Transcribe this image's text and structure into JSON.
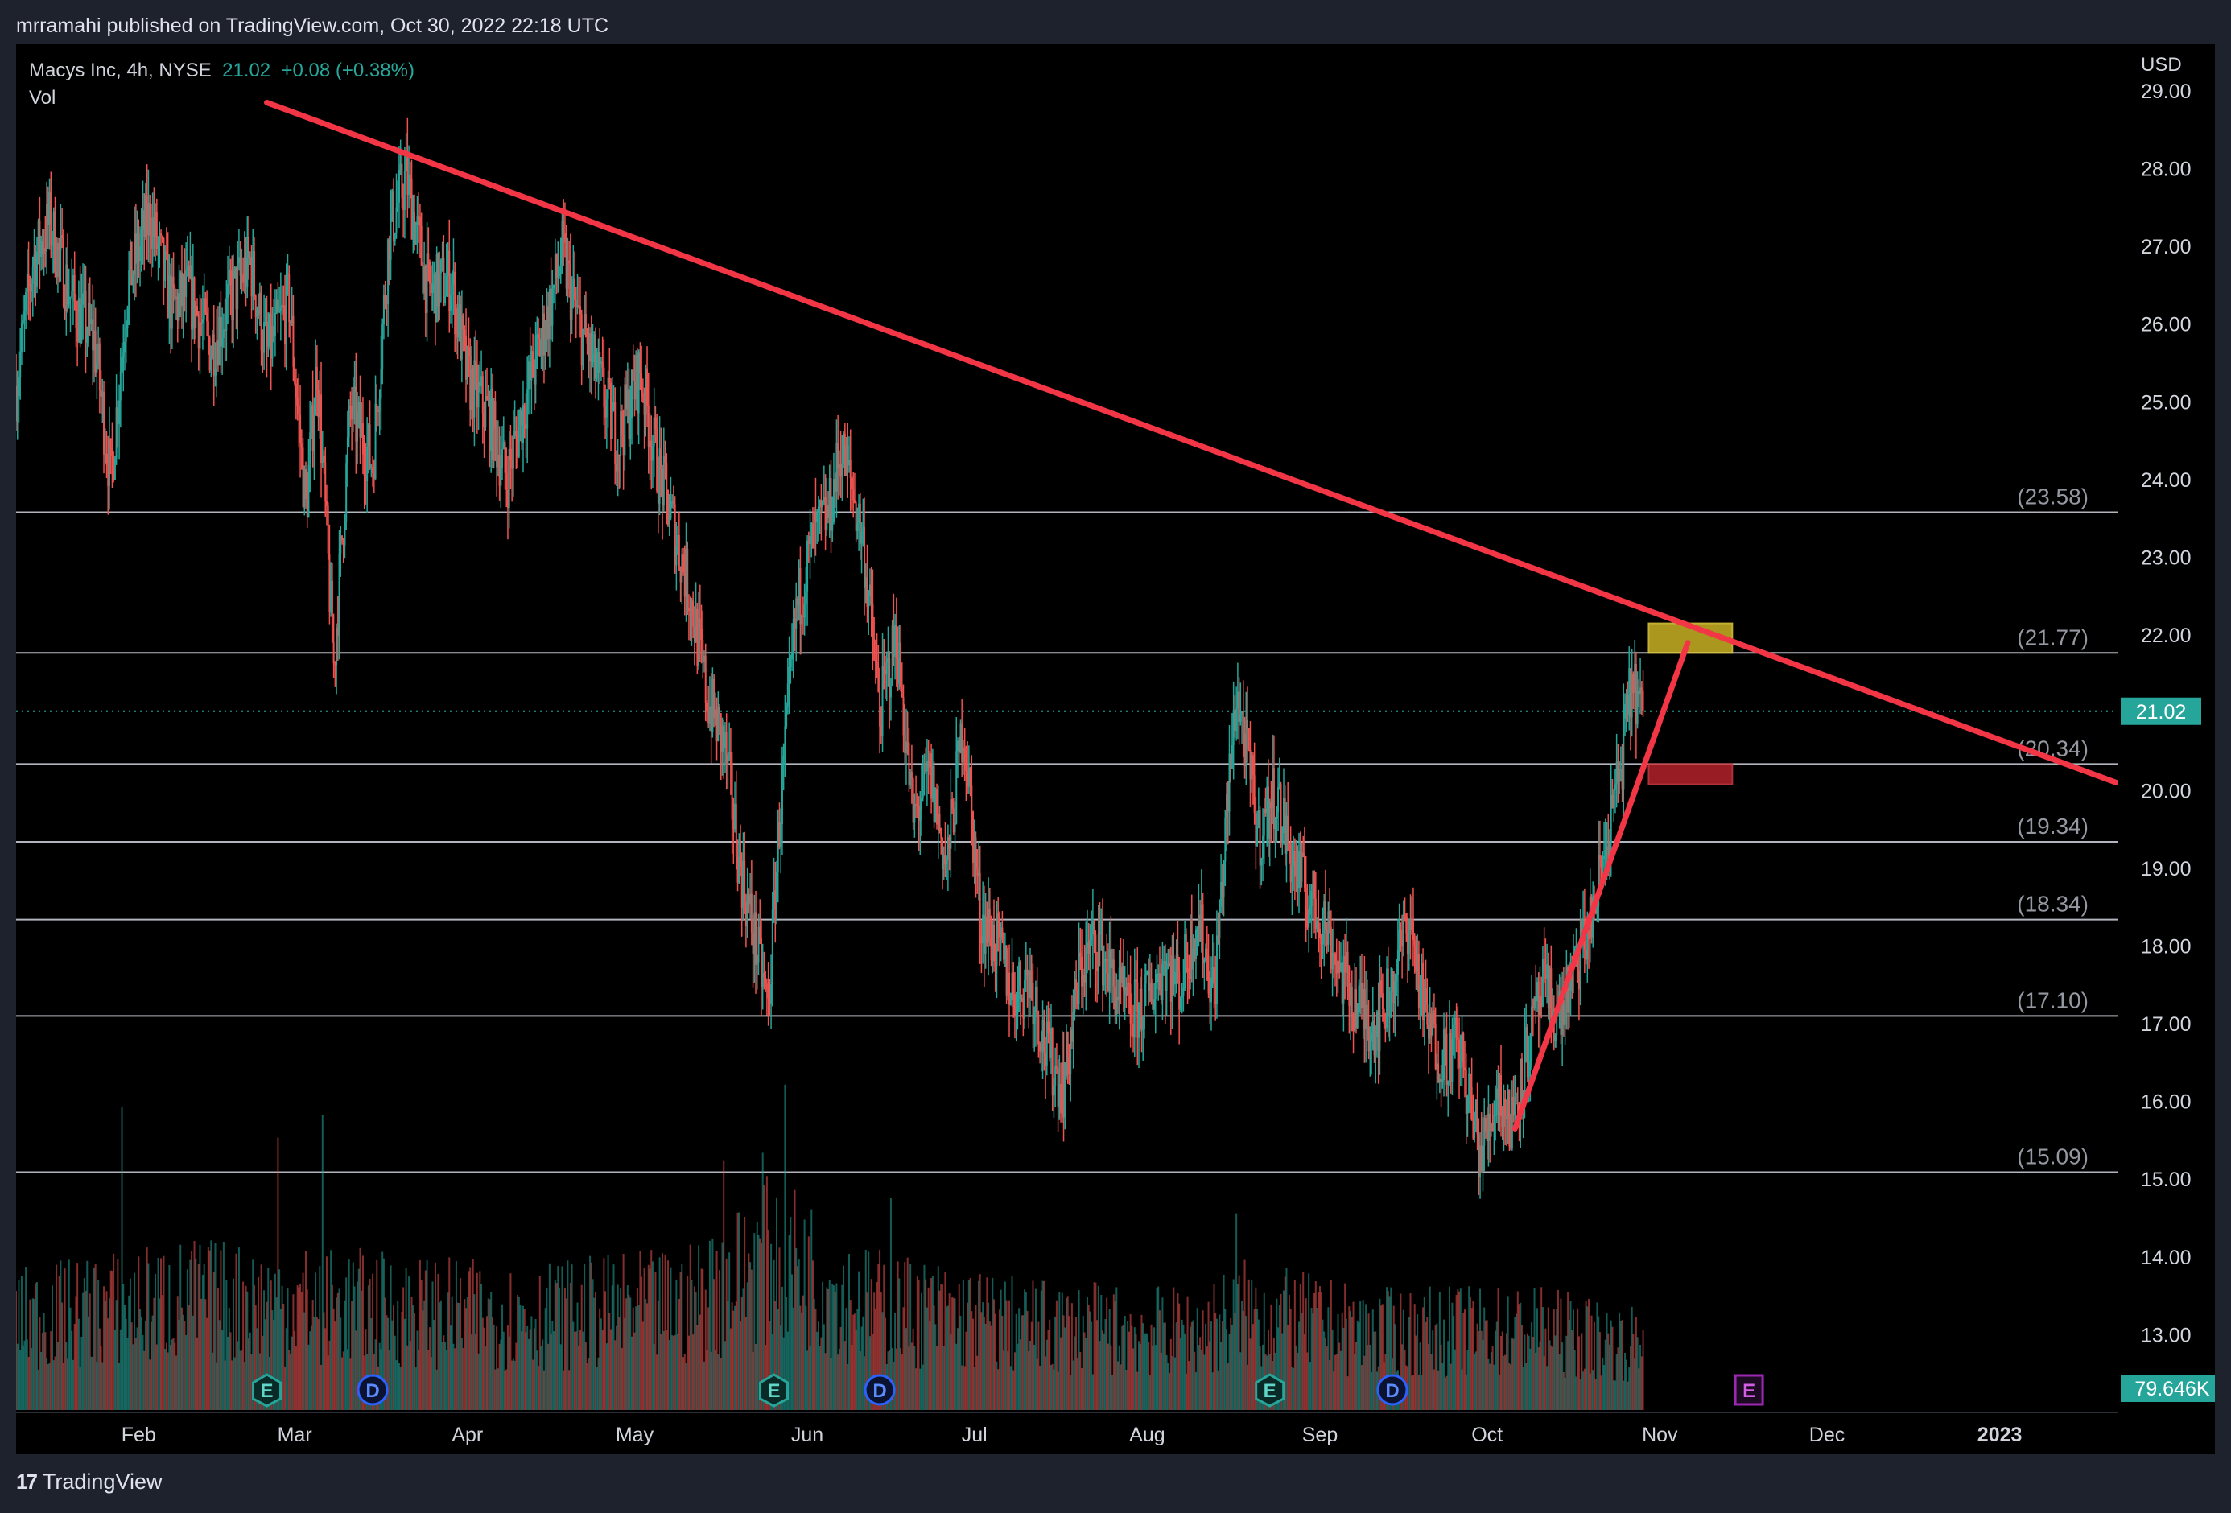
{
  "header": {
    "published_line": "mrramahi published on TradingView.com, Oct 30, 2022 22:18 UTC"
  },
  "legend": {
    "symbol": "Macys Inc, 4h, NYSE",
    "last": "21.02",
    "change": "+0.08 (+0.38%)",
    "volume_label": "Vol"
  },
  "footer": {
    "logo_icon": "tradingview-logo-icon",
    "brand": "TradingView"
  },
  "colors": {
    "background": "#000000",
    "frame": "#1e222d",
    "up": "#26a69a",
    "down": "#ef5350",
    "trendline": "#f23645",
    "level_line": "#b2b5be",
    "target_box": "#c9b223",
    "stop_box": "#b2222a",
    "event_teal": "#26a69a",
    "event_blue": "#2962ff",
    "event_purple": "#9c27b0"
  },
  "chart_data": {
    "type": "candlestick",
    "currency": "USD",
    "y_ticks": [
      "29.00",
      "28.00",
      "27.00",
      "26.00",
      "25.00",
      "24.00",
      "23.00",
      "22.00",
      "20.00",
      "19.00",
      "18.00",
      "17.00",
      "16.00",
      "15.00",
      "14.00",
      "13.00"
    ],
    "ylim": [
      12.0,
      29.6
    ],
    "x_ticks": [
      "Feb",
      "Mar",
      "Apr",
      "May",
      "Jun",
      "Jul",
      "Aug",
      "Sep",
      "Oct",
      "Nov",
      "Dec",
      "2023"
    ],
    "x_tick_dates": [
      "2022-02-01",
      "2022-03-01",
      "2022-04-01",
      "2022-05-01",
      "2022-06-01",
      "2022-07-01",
      "2022-08-01",
      "2022-09-01",
      "2022-10-01",
      "2022-11-01",
      "2022-12-01",
      "2023-01-01"
    ],
    "xlim": [
      "2022-01-10",
      "2023-01-22"
    ],
    "last_price": {
      "value": 21.02,
      "label": "21.02"
    },
    "last_volume_label": "79.646K",
    "price_path": [
      [
        "2022-01-10",
        25.2
      ],
      [
        "2022-01-13",
        26.8
      ],
      [
        "2022-01-16",
        27.3
      ],
      [
        "2022-01-20",
        26.3
      ],
      [
        "2022-01-24",
        25.8
      ],
      [
        "2022-01-27",
        24.0
      ],
      [
        "2022-01-30",
        26.5
      ],
      [
        "2022-02-03",
        27.4
      ],
      [
        "2022-02-07",
        26.2
      ],
      [
        "2022-02-10",
        26.4
      ],
      [
        "2022-02-14",
        25.7
      ],
      [
        "2022-02-18",
        26.4
      ],
      [
        "2022-02-21",
        26.8
      ],
      [
        "2022-02-24",
        25.6
      ],
      [
        "2022-02-28",
        26.3
      ],
      [
        "2022-03-03",
        23.6
      ],
      [
        "2022-03-05",
        25.5
      ],
      [
        "2022-03-08",
        21.6
      ],
      [
        "2022-03-11",
        24.9
      ],
      [
        "2022-03-15",
        24.2
      ],
      [
        "2022-03-18",
        27.2
      ],
      [
        "2022-03-21",
        27.9
      ],
      [
        "2022-03-25",
        26.4
      ],
      [
        "2022-03-29",
        26.6
      ],
      [
        "2022-04-01",
        25.3
      ],
      [
        "2022-04-05",
        24.8
      ],
      [
        "2022-04-08",
        24.0
      ],
      [
        "2022-04-12",
        25.2
      ],
      [
        "2022-04-15",
        26.0
      ],
      [
        "2022-04-18",
        26.9
      ],
      [
        "2022-04-21",
        26.0
      ],
      [
        "2022-04-24",
        25.4
      ],
      [
        "2022-04-28",
        24.5
      ],
      [
        "2022-05-02",
        25.4
      ],
      [
        "2022-05-05",
        24.2
      ],
      [
        "2022-05-08",
        23.4
      ],
      [
        "2022-05-11",
        22.5
      ],
      [
        "2022-05-14",
        21.2
      ],
      [
        "2022-05-17",
        20.6
      ],
      [
        "2022-05-20",
        19.0
      ],
      [
        "2022-05-23",
        17.9
      ],
      [
        "2022-05-25",
        17.2
      ],
      [
        "2022-05-27",
        19.6
      ],
      [
        "2022-05-30",
        22.3
      ],
      [
        "2022-06-02",
        23.2
      ],
      [
        "2022-06-05",
        23.6
      ],
      [
        "2022-06-07",
        24.4
      ],
      [
        "2022-06-09",
        23.9
      ],
      [
        "2022-06-11",
        23.2
      ],
      [
        "2022-06-14",
        21.0
      ],
      [
        "2022-06-17",
        22.0
      ],
      [
        "2022-06-20",
        19.6
      ],
      [
        "2022-06-23",
        20.2
      ],
      [
        "2022-06-26",
        19.0
      ],
      [
        "2022-06-29",
        20.9
      ],
      [
        "2022-07-02",
        18.4
      ],
      [
        "2022-07-05",
        18.0
      ],
      [
        "2022-07-08",
        17.4
      ],
      [
        "2022-07-11",
        17.6
      ],
      [
        "2022-07-14",
        16.6
      ],
      [
        "2022-07-17",
        16.2
      ],
      [
        "2022-07-20",
        17.7
      ],
      [
        "2022-07-23",
        18.1
      ],
      [
        "2022-07-26",
        17.5
      ],
      [
        "2022-07-29",
        17.1
      ],
      [
        "2022-08-01",
        17.3
      ],
      [
        "2022-08-04",
        17.8
      ],
      [
        "2022-08-07",
        17.5
      ],
      [
        "2022-08-10",
        18.4
      ],
      [
        "2022-08-13",
        17.4
      ],
      [
        "2022-08-15",
        19.4
      ],
      [
        "2022-08-17",
        21.3
      ],
      [
        "2022-08-19",
        20.4
      ],
      [
        "2022-08-21",
        19.4
      ],
      [
        "2022-08-24",
        20.0
      ],
      [
        "2022-08-27",
        19.1
      ],
      [
        "2022-08-30",
        18.6
      ],
      [
        "2022-09-02",
        18.3
      ],
      [
        "2022-09-05",
        17.6
      ],
      [
        "2022-09-08",
        17.2
      ],
      [
        "2022-09-11",
        17.0
      ],
      [
        "2022-09-14",
        17.5
      ],
      [
        "2022-09-17",
        18.4
      ],
      [
        "2022-09-20",
        17.0
      ],
      [
        "2022-09-23",
        16.6
      ],
      [
        "2022-09-26",
        16.7
      ],
      [
        "2022-09-28",
        15.9
      ],
      [
        "2022-09-30",
        15.3
      ],
      [
        "2022-10-03",
        16.2
      ],
      [
        "2022-10-05",
        15.7
      ],
      [
        "2022-10-08",
        16.6
      ],
      [
        "2022-10-11",
        17.4
      ],
      [
        "2022-10-14",
        17.1
      ],
      [
        "2022-10-17",
        17.7
      ],
      [
        "2022-10-20",
        18.4
      ],
      [
        "2022-10-22",
        19.2
      ],
      [
        "2022-10-25",
        20.3
      ],
      [
        "2022-10-27",
        21.4
      ],
      [
        "2022-10-29",
        21.02
      ]
    ],
    "volume": {
      "ylim": [
        0,
        250000
      ],
      "profile": [
        [
          "2022-01-10",
          70000
        ],
        [
          "2022-02-10",
          85000
        ],
        [
          "2022-03-10",
          80000
        ],
        [
          "2022-04-10",
          72000
        ],
        [
          "2022-05-10",
          80000
        ],
        [
          "2022-05-27",
          120000
        ],
        [
          "2022-06-10",
          82000
        ],
        [
          "2022-07-10",
          65000
        ],
        [
          "2022-08-10",
          60000
        ],
        [
          "2022-08-18",
          75000
        ],
        [
          "2022-09-10",
          60000
        ],
        [
          "2022-10-10",
          62000
        ],
        [
          "2022-10-29",
          50000
        ]
      ],
      "spikes": [
        [
          "2022-01-29",
          200000
        ],
        [
          "2022-02-26",
          180000
        ],
        [
          "2022-03-06",
          195000
        ],
        [
          "2022-05-17",
          165000
        ],
        [
          "2022-05-24",
          170000
        ],
        [
          "2022-05-28",
          215000
        ],
        [
          "2022-06-16",
          140000
        ],
        [
          "2022-08-17",
          130000
        ]
      ]
    },
    "horizontal_levels": [
      {
        "value": 23.58,
        "label": "(23.58)"
      },
      {
        "value": 21.77,
        "label": "(21.77)"
      },
      {
        "value": 20.34,
        "label": "(20.34)"
      },
      {
        "value": 19.34,
        "label": "(19.34)"
      },
      {
        "value": 18.34,
        "label": "(18.34)"
      },
      {
        "value": 17.1,
        "label": "(17.10)"
      },
      {
        "value": 15.09,
        "label": "(15.09)"
      }
    ],
    "trendlines": [
      {
        "name": "descending-resistance",
        "from": [
          "2022-02-24",
          28.85
        ],
        "to": [
          "2023-01-22",
          20.1
        ]
      },
      {
        "name": "ascending-support",
        "from": [
          "2022-10-06",
          15.65
        ],
        "to": [
          "2022-11-06",
          21.9
        ]
      }
    ],
    "zones": [
      {
        "name": "target-zone",
        "from": [
          "2022-10-30",
          22.15
        ],
        "to": [
          "2022-11-14",
          21.77
        ]
      },
      {
        "name": "stop-zone",
        "from": [
          "2022-10-30",
          20.34
        ],
        "to": [
          "2022-11-14",
          20.08
        ]
      }
    ],
    "events": [
      {
        "label": "E",
        "date": "2022-02-24",
        "kind": "earnings"
      },
      {
        "label": "D",
        "date": "2022-03-15",
        "kind": "dividend"
      },
      {
        "label": "E",
        "date": "2022-05-26",
        "kind": "earnings"
      },
      {
        "label": "D",
        "date": "2022-06-14",
        "kind": "dividend"
      },
      {
        "label": "E",
        "date": "2022-08-23",
        "kind": "earnings"
      },
      {
        "label": "D",
        "date": "2022-09-14",
        "kind": "dividend"
      },
      {
        "label": "E",
        "date": "2022-11-17",
        "kind": "earnings-upcoming"
      }
    ]
  }
}
